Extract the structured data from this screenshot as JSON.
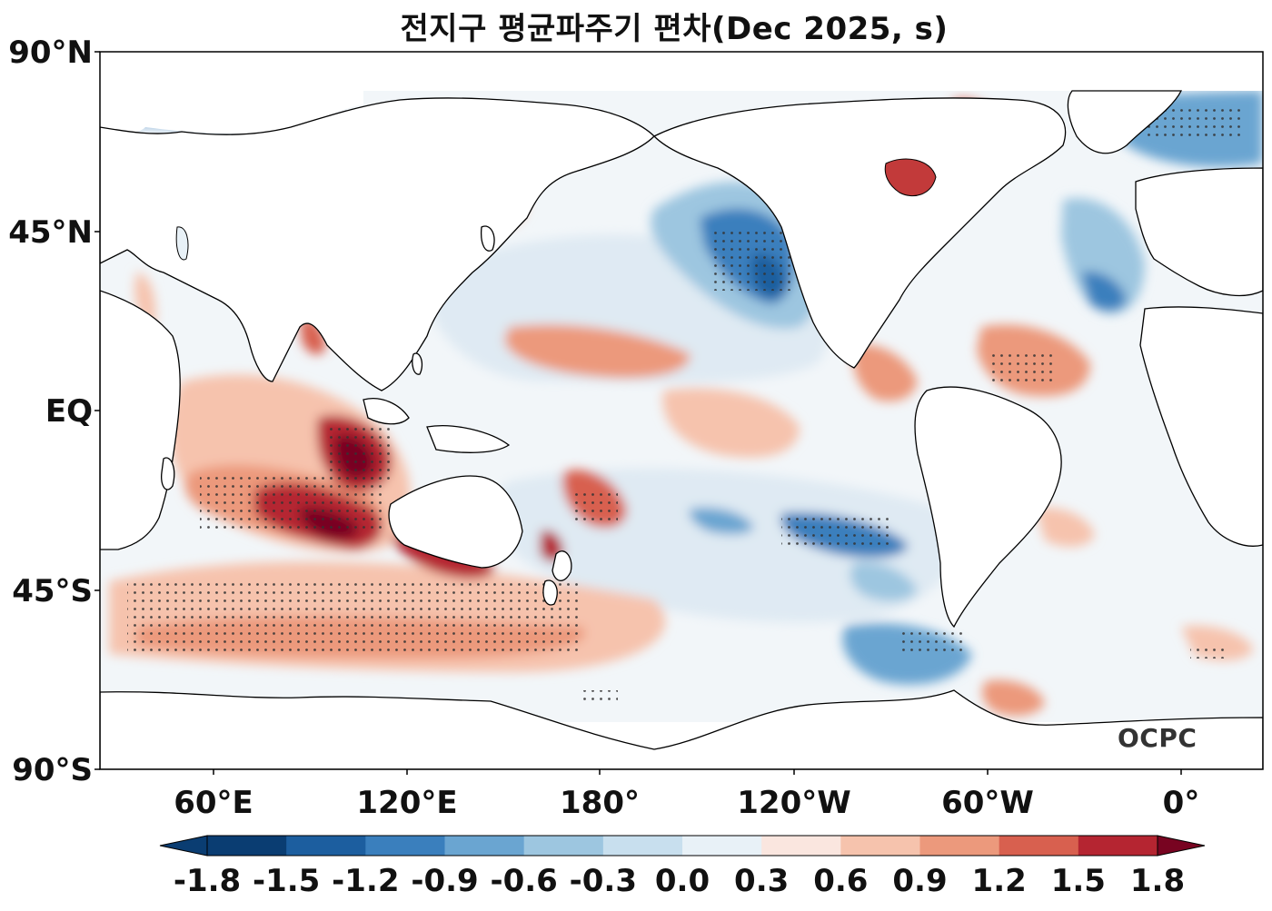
{
  "title": "전지구 평균파주기 편차(Dec 2025, s)",
  "watermark": "OCPC",
  "lat_labels": [
    "90°N",
    "45°N",
    "EQ",
    "45°S",
    "90°S"
  ],
  "lon_labels": [
    "60°E",
    "120°E",
    "180°",
    "120°W",
    "60°W",
    "0°"
  ],
  "colorbar": {
    "ticks": [
      "-1.8",
      "-1.5",
      "-1.2",
      "-0.9",
      "-0.6",
      "-0.3",
      "0.0",
      "0.3",
      "0.6",
      "0.9",
      "1.2",
      "1.5",
      "1.8"
    ],
    "colors": [
      "#0a3d72",
      "#1c5e9f",
      "#3a7fbd",
      "#6aa5d1",
      "#9dc6e0",
      "#c8dfee",
      "#e8f1f7",
      "#fae6df",
      "#f6c3ad",
      "#ec997c",
      "#d8604f",
      "#b52531",
      "#780421"
    ]
  },
  "colors": {
    "ocean_default": "#f4f8fb",
    "land": "#ffffff",
    "coast": "#000000"
  }
}
